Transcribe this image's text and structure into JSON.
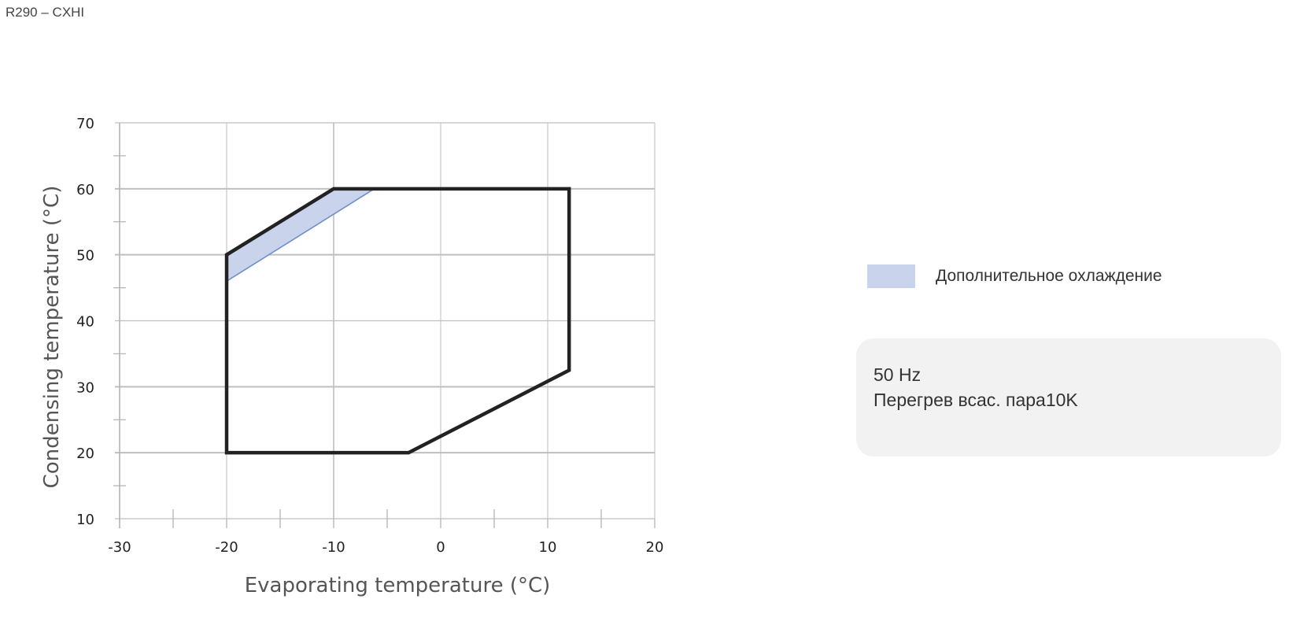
{
  "page": {
    "title": "R290 – CXHI"
  },
  "chart_data": {
    "type": "area",
    "xlabel": "Evaporating temperature (°C)",
    "ylabel": "Condensing temperature (°C)",
    "xlim": [
      -30,
      20
    ],
    "ylim": [
      10,
      70
    ],
    "x_ticks": [
      -30,
      -20,
      -10,
      0,
      10,
      20
    ],
    "y_ticks": [
      10,
      20,
      30,
      40,
      50,
      60,
      70
    ],
    "x_tick_labels": [
      "-30",
      "-20",
      "-10",
      "0",
      "10",
      "20"
    ],
    "y_tick_labels": [
      "10",
      "20",
      "30",
      "40",
      "50",
      "60",
      "70"
    ],
    "grid": true,
    "envelope": {
      "points": [
        {
          "x": -20,
          "y": 20
        },
        {
          "x": -20,
          "y": 50
        },
        {
          "x": -10,
          "y": 60
        },
        {
          "x": 12,
          "y": 60
        },
        {
          "x": 12,
          "y": 32.5
        },
        {
          "x": -3,
          "y": 20
        }
      ],
      "color": "#222222"
    },
    "series": [
      {
        "name": "Дополнительное охлаждение",
        "color": "#c9d3ec",
        "edge_color": "#6f8fc7",
        "points": [
          {
            "x": -20,
            "y": 50
          },
          {
            "x": -10,
            "y": 60
          },
          {
            "x": -6.2,
            "y": 60
          },
          {
            "x": -20,
            "y": 46
          }
        ]
      }
    ]
  },
  "legend": {
    "label": "Дополнительное охлаждение",
    "color": "#c9d3ec"
  },
  "info": {
    "line1": "50 Hz",
    "line2": "Перегрев всас. пара10K"
  }
}
